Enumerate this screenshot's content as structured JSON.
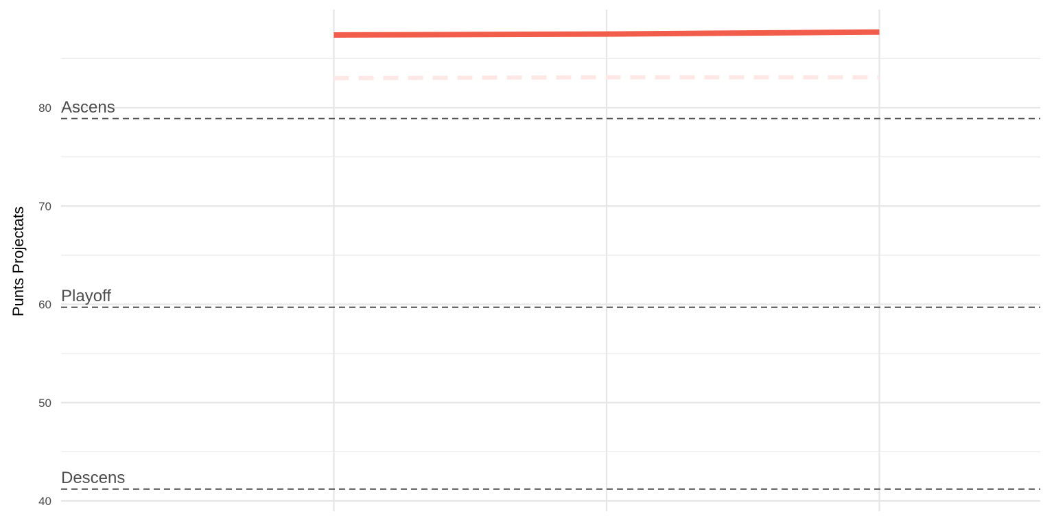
{
  "chart_data": {
    "type": "line",
    "title": "",
    "xlabel": "",
    "ylabel": "Punts Projectats",
    "x": [
      1,
      2,
      3
    ],
    "xlim": [
      0,
      4
    ],
    "ylim": [
      40,
      90
    ],
    "yticks": [
      40,
      50,
      60,
      70,
      80
    ],
    "grid": true,
    "series": [
      {
        "values": [
          87.4,
          87.5,
          87.7
        ],
        "color": "#f25c4a",
        "style": "solid"
      },
      {
        "values": [
          83.0,
          83.1,
          83.1
        ],
        "color": "#fde8e6",
        "style": "dashed"
      }
    ],
    "reference_lines": [
      {
        "label": "Ascens",
        "value": 78.9
      },
      {
        "label": "Playoff",
        "value": 59.7
      },
      {
        "label": "Descens",
        "value": 41.2
      }
    ],
    "reference_color": "#4d4d4d"
  }
}
